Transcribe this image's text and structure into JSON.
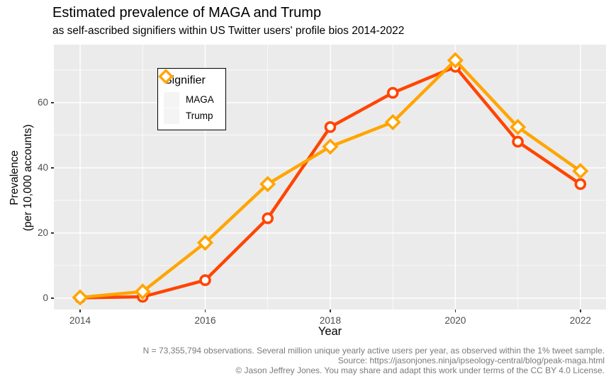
{
  "title": "Estimated prevalence of MAGA and Trump",
  "subtitle": "as self-ascribed signifiers within US Twitter users' profile bios 2014-2022",
  "axes": {
    "x_label": "Year",
    "y_label_line1": "Prevalence",
    "y_label_line2": "(per 10,000 accounts)"
  },
  "legend": {
    "title": "Signifier",
    "items": [
      {
        "label": "MAGA",
        "marker": "circle",
        "color": "#FF4500"
      },
      {
        "label": "Trump",
        "marker": "diamond",
        "color": "#FFA500"
      }
    ]
  },
  "caption": {
    "lines": [
      "N = 73,355,794 observations. Several million unique yearly active users per year, as observed within the 1% tweet sample.",
      "Source: https://jasonjones.ninja/ipseology-central/blog/peak-maga.html",
      "© Jason Jeffrey Jones. You may share and adapt this work under terms of the CC BY 4.0 License."
    ]
  },
  "chart_data": {
    "type": "line",
    "title": "Estimated prevalence of MAGA and Trump",
    "subtitle": "as self-ascribed signifiers within US Twitter users' profile bios 2014-2022",
    "xlabel": "Year",
    "ylabel": "Prevalence (per 10,000 accounts)",
    "x": [
      2014,
      2015,
      2016,
      2017,
      2018,
      2019,
      2020,
      2021,
      2022
    ],
    "series": [
      {
        "name": "MAGA",
        "marker": "circle",
        "color": "#FF4500",
        "values": [
          0.1,
          0.4,
          5.5,
          24.5,
          52.5,
          63,
          71,
          48,
          35
        ]
      },
      {
        "name": "Trump",
        "marker": "diamond",
        "color": "#FFA500",
        "values": [
          0.2,
          2,
          17,
          35,
          46.5,
          54,
          73,
          52.5,
          39
        ]
      }
    ],
    "x_ticks": [
      2014,
      2016,
      2018,
      2020,
      2022
    ],
    "x_minor": [
      2015,
      2017,
      2019,
      2021
    ],
    "y_ticks": [
      0,
      20,
      40,
      60
    ],
    "y_minor": [
      10,
      30,
      50,
      70
    ],
    "x_domain": [
      2013.58,
      2022.41
    ],
    "y_domain": [
      -3.5,
      77.8
    ],
    "legend_position": "top-left-inside",
    "grid": true,
    "panel_bg": "#EBEBEB",
    "grid_color": "#FFFFFF",
    "marker_fill": "#FFFFFF"
  }
}
